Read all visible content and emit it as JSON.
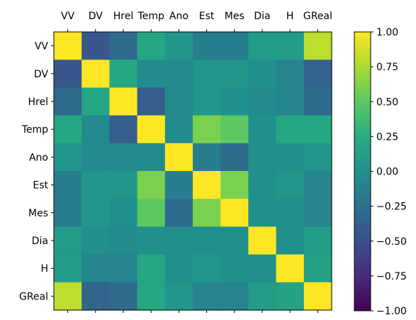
{
  "chart_data": {
    "type": "heatmap",
    "title": "",
    "xlabel": "",
    "ylabel": "",
    "x_labels": [
      "VV",
      "DV",
      "Hrel",
      "Temp",
      "Ano",
      "Est",
      "Mes",
      "Dia",
      "H",
      "GReal"
    ],
    "y_labels": [
      "VV",
      "DV",
      "Hrel",
      "Temp",
      "Ano",
      "Est",
      "Mes",
      "Dia",
      "H",
      "GReal"
    ],
    "x_tick_position": "top",
    "values": [
      [
        1.0,
        -0.45,
        -0.3,
        0.2,
        0.05,
        -0.15,
        -0.15,
        0.1,
        0.1,
        0.8
      ],
      [
        -0.45,
        1.0,
        0.2,
        -0.05,
        -0.05,
        0.05,
        0.05,
        0.0,
        -0.1,
        -0.35
      ],
      [
        -0.3,
        0.2,
        1.0,
        -0.4,
        -0.05,
        0.05,
        0.0,
        -0.05,
        -0.1,
        -0.3
      ],
      [
        0.2,
        -0.05,
        -0.4,
        1.0,
        -0.05,
        0.6,
        0.5,
        0.0,
        0.2,
        0.2
      ],
      [
        0.05,
        -0.05,
        -0.05,
        -0.05,
        1.0,
        -0.15,
        -0.3,
        0.0,
        0.0,
        0.05
      ],
      [
        -0.15,
        0.05,
        0.05,
        0.6,
        -0.15,
        1.0,
        0.6,
        0.0,
        0.05,
        -0.1
      ],
      [
        -0.15,
        0.05,
        0.0,
        0.5,
        -0.3,
        0.6,
        1.0,
        0.0,
        0.0,
        -0.1
      ],
      [
        0.1,
        0.0,
        -0.05,
        0.0,
        0.0,
        0.0,
        0.0,
        1.0,
        0.0,
        0.1
      ],
      [
        0.1,
        -0.1,
        -0.1,
        0.2,
        0.0,
        0.05,
        0.0,
        0.0,
        1.0,
        0.15
      ],
      [
        0.8,
        -0.35,
        -0.3,
        0.2,
        0.05,
        -0.1,
        -0.1,
        0.1,
        0.15,
        1.0
      ]
    ],
    "colorscale": "viridis",
    "zlim": [
      -1.0,
      1.0
    ],
    "colorbar_ticks": [
      1.0,
      0.75,
      0.5,
      0.25,
      0.0,
      -0.25,
      -0.5,
      -0.75,
      -1.0
    ],
    "colorbar_tick_labels": [
      "1.00",
      "0.75",
      "0.50",
      "0.25",
      "0.00",
      "−0.25",
      "−0.50",
      "−0.75",
      "−1.00"
    ],
    "grid": false,
    "legend": "colorbar-right"
  }
}
